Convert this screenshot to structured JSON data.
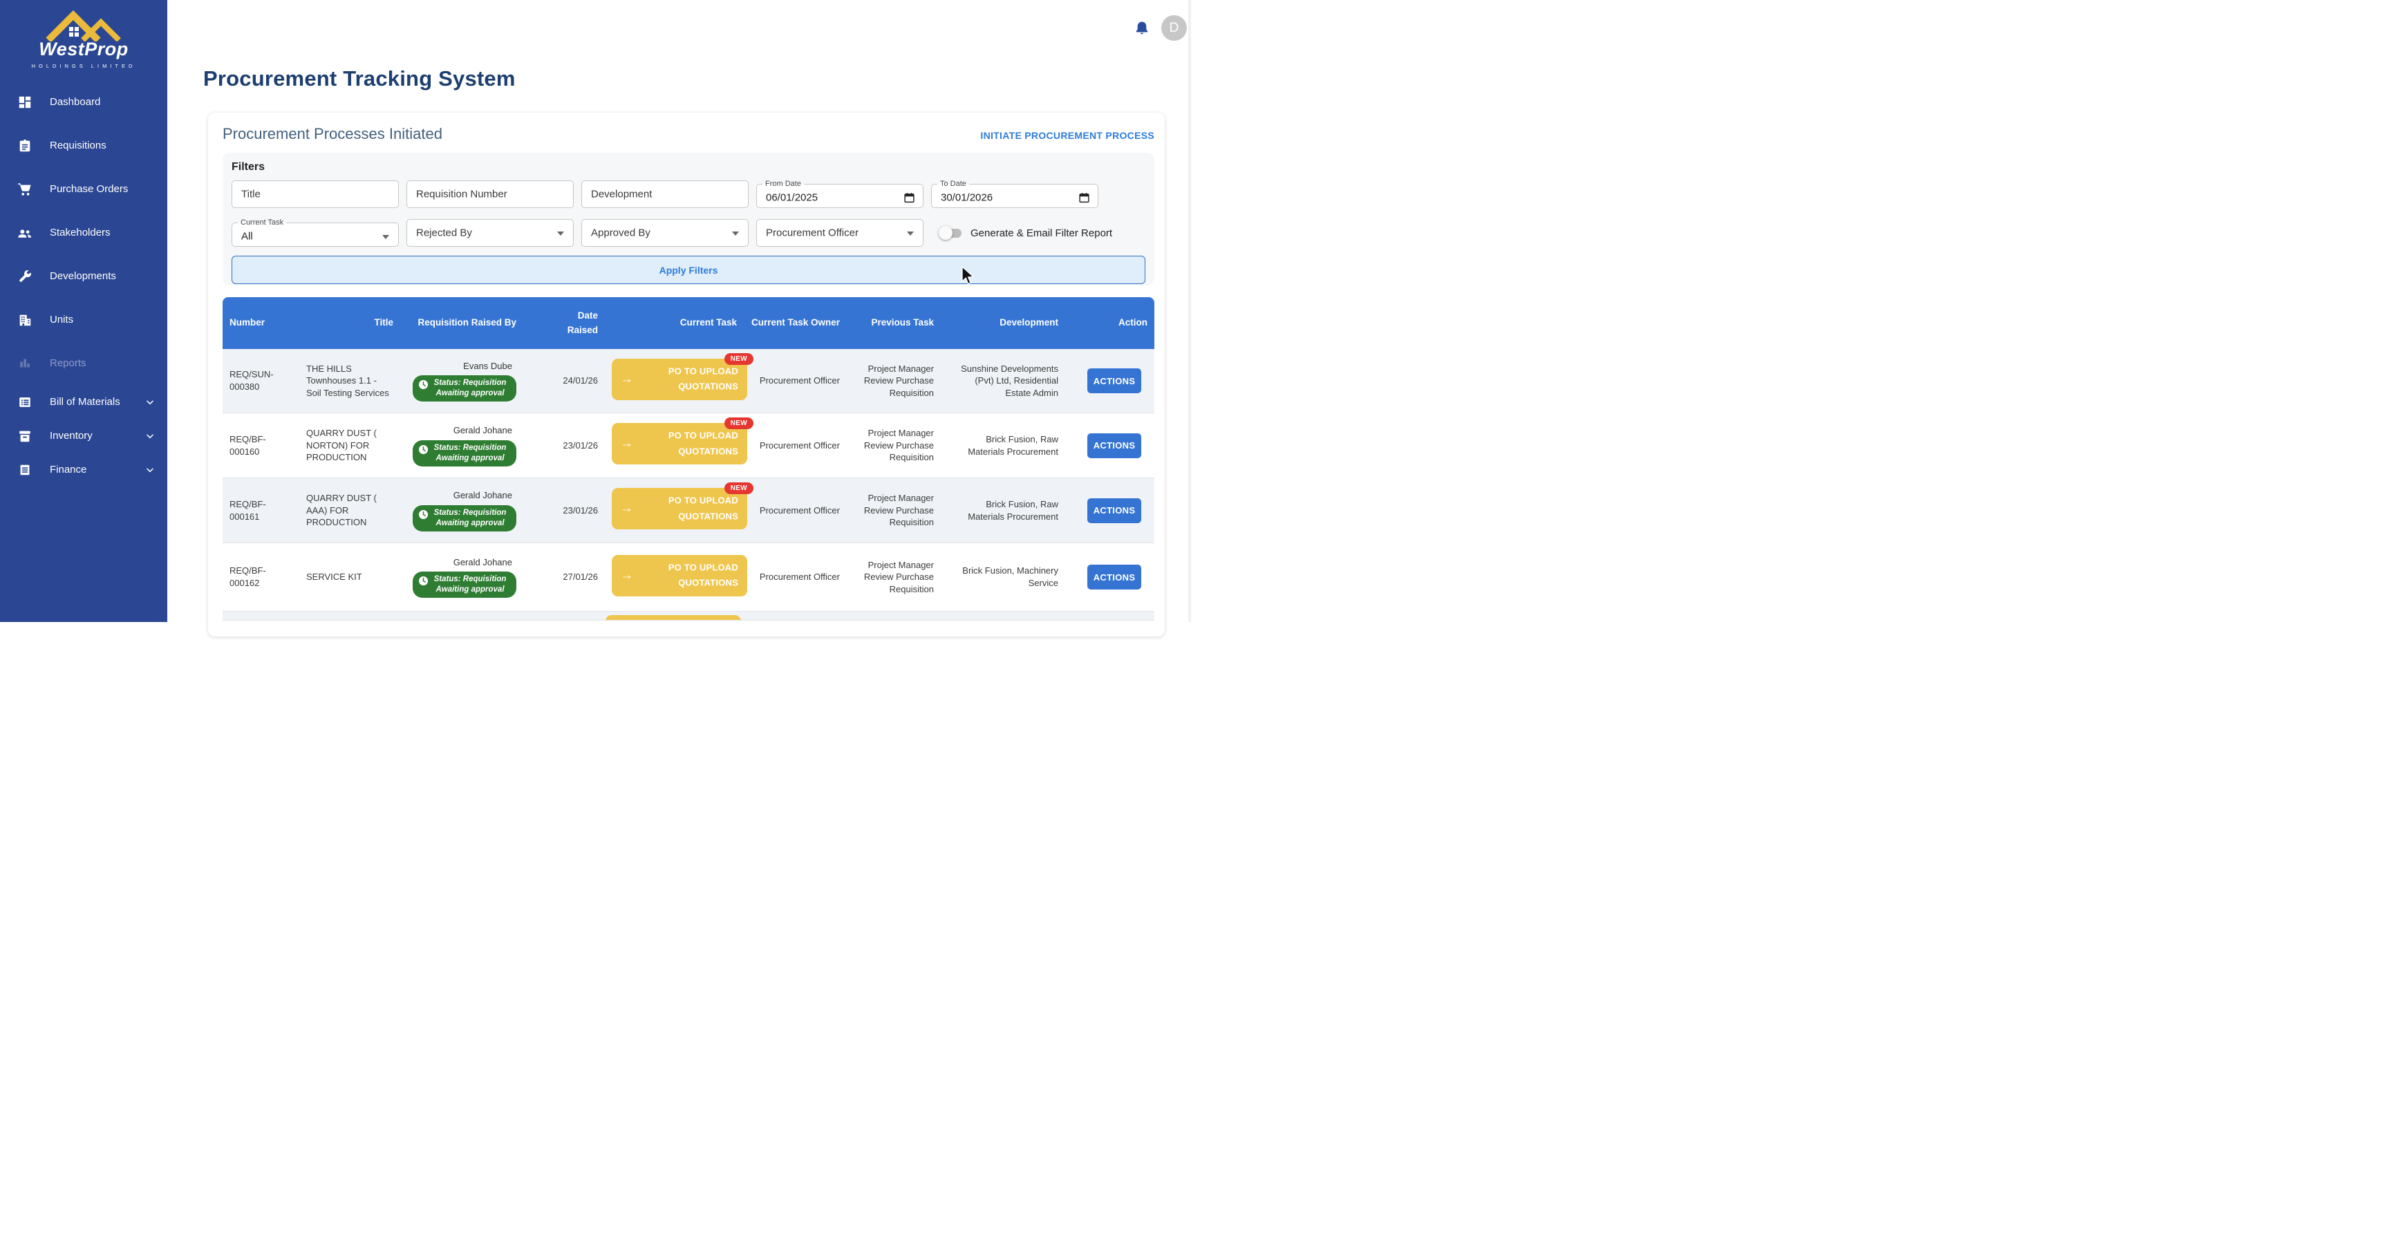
{
  "brand": {
    "name": "WestProp",
    "tagline": "HOLDINGS LIMITED"
  },
  "sidebar": {
    "items": [
      {
        "label": "Dashboard",
        "icon": "dashboard"
      },
      {
        "label": "Requisitions",
        "icon": "clipboard"
      },
      {
        "label": "Purchase Orders",
        "icon": "cart"
      },
      {
        "label": "Stakeholders",
        "icon": "people"
      },
      {
        "label": "Developments",
        "icon": "wrench"
      },
      {
        "label": "Units",
        "icon": "building"
      },
      {
        "label": "Reports",
        "icon": "bar-chart",
        "disabled": true
      },
      {
        "label": "Bill of Materials",
        "icon": "list-box",
        "expandable": true,
        "compact": true
      },
      {
        "label": "Inventory",
        "icon": "inventory-box",
        "expandable": true,
        "compact": true
      },
      {
        "label": "Finance",
        "icon": "receipt",
        "expandable": true,
        "compact": true
      }
    ]
  },
  "topbar": {
    "avatar_initial": "D"
  },
  "page": {
    "title": "Procurement Tracking System"
  },
  "panel": {
    "heading": "Procurement Processes Initiated",
    "action_link": "INITIATE PROCUREMENT PROCESS",
    "filters": {
      "heading": "Filters",
      "title_placeholder": "Title",
      "requisition_number_placeholder": "Requisition Number",
      "development_placeholder": "Development",
      "from_date": {
        "label": "From Date",
        "value": "06/01/2025"
      },
      "to_date": {
        "label": "To Date",
        "value": "30/01/2026"
      },
      "current_task": {
        "label": "Current Task",
        "value": "All"
      },
      "rejected_by": "Rejected By",
      "approved_by": "Approved By",
      "procurement_officer": "Procurement Officer",
      "toggle_label": "Generate & Email Filter Report",
      "apply_button": "Apply Filters"
    }
  },
  "table": {
    "columns": [
      "Number",
      "Title",
      "Requisition Raised By",
      "Date Raised",
      "Current Task",
      "Current Task Owner",
      "Previous Task",
      "Development",
      "Action"
    ],
    "new_label": "NEW",
    "actions_label": "ACTIONS",
    "rows": [
      {
        "number": "REQ/SUN-000380",
        "title": "THE HILLS Townhouses 1.1 - Soil Testing Services",
        "raised_by": "Evans Dube",
        "status": "Status: Requisition Awaiting approval",
        "date_raised": "24/01/26",
        "current_task": "PO TO UPLOAD QUOTATIONS",
        "is_new": true,
        "owner": "Procurement Officer",
        "previous_task": "Project Manager Review Purchase Requisition",
        "development": "Sunshine Developments (Pvt) Ltd, Residential Estate Admin"
      },
      {
        "number": "REQ/BF-000160",
        "title": "QUARRY DUST ( NORTON) FOR PRODUCTION",
        "raised_by": "Gerald Johane",
        "status": "Status: Requisition Awaiting approval",
        "date_raised": "23/01/26",
        "current_task": "PO TO UPLOAD QUOTATIONS",
        "is_new": true,
        "owner": "Procurement Officer",
        "previous_task": "Project Manager Review Purchase Requisition",
        "development": "Brick Fusion, Raw Materials Procurement"
      },
      {
        "number": "REQ/BF-000161",
        "title": "QUARRY DUST ( AAA) FOR PRODUCTION",
        "raised_by": "Gerald Johane",
        "status": "Status: Requisition Awaiting approval",
        "date_raised": "23/01/26",
        "current_task": "PO TO UPLOAD QUOTATIONS",
        "is_new": true,
        "owner": "Procurement Officer",
        "previous_task": "Project Manager Review Purchase Requisition",
        "development": "Brick Fusion, Raw Materials Procurement"
      },
      {
        "number": "REQ/BF-000162",
        "title": "SERVICE KIT",
        "raised_by": "Gerald Johane",
        "status": "Status: Requisition Awaiting approval",
        "date_raised": "27/01/26",
        "current_task": "PO TO UPLOAD QUOTATIONS",
        "is_new": false,
        "owner": "Procurement Officer",
        "previous_task": "Project Manager Review Purchase Requisition",
        "development": "Brick Fusion, Machinery Service"
      }
    ]
  },
  "icons": {
    "task_arrow": "→"
  },
  "colors": {
    "sidebar": "#2b4692",
    "blue": "#3574d3",
    "yellow": "#efc64d",
    "green": "#2e7d32",
    "red": "#e5372f",
    "link": "#2e7cd9",
    "title": "#1c3e70"
  }
}
